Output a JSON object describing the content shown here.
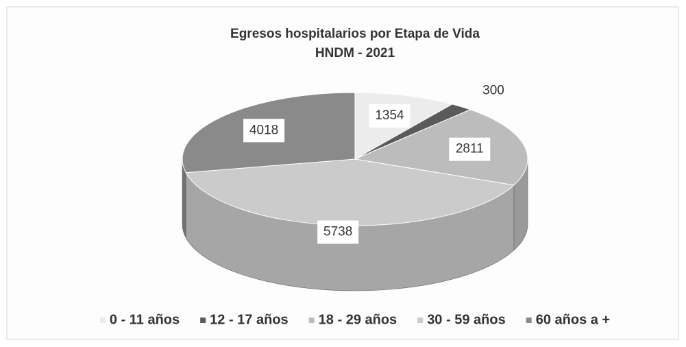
{
  "chart_data": {
    "type": "pie",
    "title": "Egresos hospitalarios por Etapa de Vida",
    "subtitle": "HNDM - 2021",
    "categories": [
      "0 - 11 años",
      "12 - 17 años",
      "18 - 29 años",
      "30 - 59 años",
      "60 años a +"
    ],
    "values": [
      1354,
      300,
      2811,
      5738,
      4018
    ],
    "colors": [
      "#ececec",
      "#5a5a5a",
      "#bcbcbc",
      "#cbcbcb",
      "#8a8a8a"
    ],
    "legend": "bottom"
  }
}
